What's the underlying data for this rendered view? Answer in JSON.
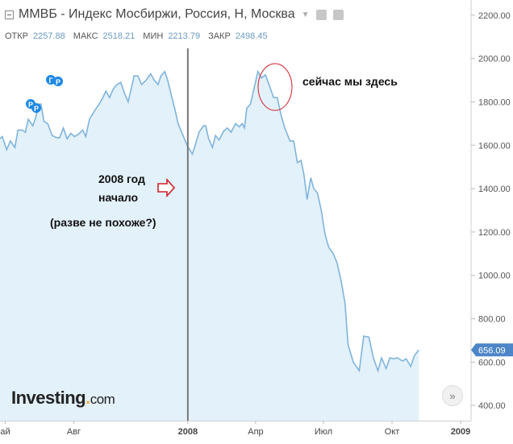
{
  "header": {
    "title": "ММВБ - Индекс Мосбиржи, Россия, Н, Москва",
    "ohlc": [
      {
        "label": "ОТКР",
        "value": "2257.88"
      },
      {
        "label": "МАКС",
        "value": "2518.21"
      },
      {
        "label": "МИН",
        "value": "2213.79"
      },
      {
        "label": "ЗАКР",
        "value": "2498.45"
      }
    ]
  },
  "annotations": {
    "here": "сейчас мы здесь",
    "year_line1": "2008 год",
    "year_line2": "начало",
    "question": "(разве не похоже?)"
  },
  "logo": {
    "main": "Investing",
    "suffix": "com"
  },
  "colors": {
    "line": "#7fb4dc",
    "fill": "#e3f1fa",
    "price_tag": "#4c86c8",
    "divider": "#777777",
    "marker": "#1e88e5",
    "arrow": "#d0202a",
    "ellipse": "#d0202a"
  },
  "chart_data": {
    "type": "area",
    "title": "ММВБ - Индекс Мосбиржи, Россия, Н, Москва",
    "xlabel": "",
    "ylabel": "",
    "ylim": [
      330,
      2270
    ],
    "y_ticks": [
      400,
      600,
      800,
      1000,
      1200,
      1400,
      1600,
      1800,
      2000,
      2200
    ],
    "y_tick_labels": [
      "400.00",
      "600.00",
      "800.00",
      "1000.00",
      "1200.00",
      "1400.00",
      "1600.00",
      "1800.00",
      "2000.00",
      "2200.00"
    ],
    "x_ticks": [
      {
        "label": "ай",
        "date": "2007-05-01"
      },
      {
        "label": "Авг",
        "date": "2007-08-01"
      },
      {
        "label": "2008",
        "date": "2008-01-01"
      },
      {
        "label": "Апр",
        "date": "2008-04-01"
      },
      {
        "label": "Июл",
        "date": "2008-07-01"
      },
      {
        "label": "Окт",
        "date": "2008-10-01"
      },
      {
        "label": "2009",
        "date": "2009-01-01"
      }
    ],
    "x_range": [
      "2007-04-24",
      "2009-01-15"
    ],
    "last_value": "656.09",
    "vertical_marker": "2008-01-01",
    "series": [
      {
        "points": [
          [
            "2007-04-24",
            1630
          ],
          [
            "2007-04-27",
            1640
          ],
          [
            "2007-05-03",
            1580
          ],
          [
            "2007-05-08",
            1620
          ],
          [
            "2007-05-14",
            1590
          ],
          [
            "2007-05-18",
            1670
          ],
          [
            "2007-05-24",
            1670
          ],
          [
            "2007-05-28",
            1660
          ],
          [
            "2007-06-01",
            1720
          ],
          [
            "2007-06-07",
            1690
          ],
          [
            "2007-06-11",
            1730
          ],
          [
            "2007-06-15",
            1790
          ],
          [
            "2007-06-18",
            1790
          ],
          [
            "2007-06-22",
            1710
          ],
          [
            "2007-06-27",
            1700
          ],
          [
            "2007-07-03",
            1645
          ],
          [
            "2007-07-09",
            1635
          ],
          [
            "2007-07-13",
            1635
          ],
          [
            "2007-07-18",
            1680
          ],
          [
            "2007-07-23",
            1630
          ],
          [
            "2007-07-28",
            1655
          ],
          [
            "2007-08-02",
            1640
          ],
          [
            "2007-08-07",
            1650
          ],
          [
            "2007-08-13",
            1670
          ],
          [
            "2007-08-17",
            1640
          ],
          [
            "2007-08-22",
            1720
          ],
          [
            "2007-08-29",
            1760
          ],
          [
            "2007-09-04",
            1790
          ],
          [
            "2007-09-09",
            1820
          ],
          [
            "2007-09-13",
            1850
          ],
          [
            "2007-09-18",
            1820
          ],
          [
            "2007-09-23",
            1860
          ],
          [
            "2007-09-28",
            1880
          ],
          [
            "2007-10-03",
            1890
          ],
          [
            "2007-10-08",
            1840
          ],
          [
            "2007-10-13",
            1800
          ],
          [
            "2007-10-17",
            1860
          ],
          [
            "2007-10-21",
            1920
          ],
          [
            "2007-10-26",
            1920
          ],
          [
            "2007-10-31",
            1880
          ],
          [
            "2007-11-06",
            1900
          ],
          [
            "2007-11-12",
            1930
          ],
          [
            "2007-11-17",
            1900
          ],
          [
            "2007-11-22",
            1880
          ],
          [
            "2007-11-26",
            1920
          ],
          [
            "2007-12-01",
            1940
          ],
          [
            "2007-12-05",
            1900
          ],
          [
            "2007-12-10",
            1830
          ],
          [
            "2007-12-15",
            1760
          ],
          [
            "2007-12-19",
            1700
          ],
          [
            "2007-12-25",
            1650
          ],
          [
            "2007-12-31",
            1600
          ],
          [
            "2008-01-07",
            1560
          ],
          [
            "2008-01-10",
            1590
          ],
          [
            "2008-01-16",
            1660
          ],
          [
            "2008-01-22",
            1690
          ],
          [
            "2008-01-25",
            1690
          ],
          [
            "2008-01-29",
            1630
          ],
          [
            "2008-02-03",
            1590
          ],
          [
            "2008-02-07",
            1645
          ],
          [
            "2008-02-12",
            1625
          ],
          [
            "2008-02-18",
            1665
          ],
          [
            "2008-02-23",
            1680
          ],
          [
            "2008-02-28",
            1660
          ],
          [
            "2008-03-05",
            1700
          ],
          [
            "2008-03-10",
            1685
          ],
          [
            "2008-03-14",
            1700
          ],
          [
            "2008-03-17",
            1680
          ],
          [
            "2008-03-20",
            1770
          ],
          [
            "2008-03-25",
            1790
          ],
          [
            "2008-04-04",
            1940
          ],
          [
            "2008-04-09",
            1910
          ],
          [
            "2008-04-14",
            1925
          ],
          [
            "2008-04-20",
            1870
          ],
          [
            "2008-04-25",
            1820
          ],
          [
            "2008-04-30",
            1820
          ],
          [
            "2008-05-05",
            1740
          ],
          [
            "2008-05-10",
            1680
          ],
          [
            "2008-05-17",
            1620
          ],
          [
            "2008-05-22",
            1620
          ],
          [
            "2008-05-27",
            1520
          ],
          [
            "2008-06-01",
            1530
          ],
          [
            "2008-06-05",
            1460
          ],
          [
            "2008-06-09",
            1350
          ],
          [
            "2008-06-14",
            1450
          ],
          [
            "2008-06-18",
            1400
          ],
          [
            "2008-06-23",
            1380
          ],
          [
            "2008-06-28",
            1300
          ],
          [
            "2008-07-03",
            1190
          ],
          [
            "2008-07-08",
            1130
          ],
          [
            "2008-07-14",
            1100
          ],
          [
            "2008-07-19",
            1060
          ],
          [
            "2008-07-25",
            970
          ],
          [
            "2008-07-30",
            870
          ],
          [
            "2008-08-03",
            680
          ],
          [
            "2008-08-10",
            600
          ],
          [
            "2008-08-18",
            560
          ],
          [
            "2008-08-24",
            720
          ],
          [
            "2008-08-31",
            715
          ],
          [
            "2008-09-06",
            620
          ],
          [
            "2008-09-12",
            560
          ],
          [
            "2008-09-17",
            620
          ],
          [
            "2008-09-23",
            570
          ],
          [
            "2008-09-28",
            620
          ],
          [
            "2008-10-03",
            615
          ],
          [
            "2008-10-08",
            620
          ],
          [
            "2008-10-15",
            605
          ],
          [
            "2008-10-20",
            615
          ],
          [
            "2008-10-26",
            580
          ],
          [
            "2008-10-31",
            630
          ],
          [
            "2008-11-06",
            656
          ]
        ]
      }
    ]
  }
}
